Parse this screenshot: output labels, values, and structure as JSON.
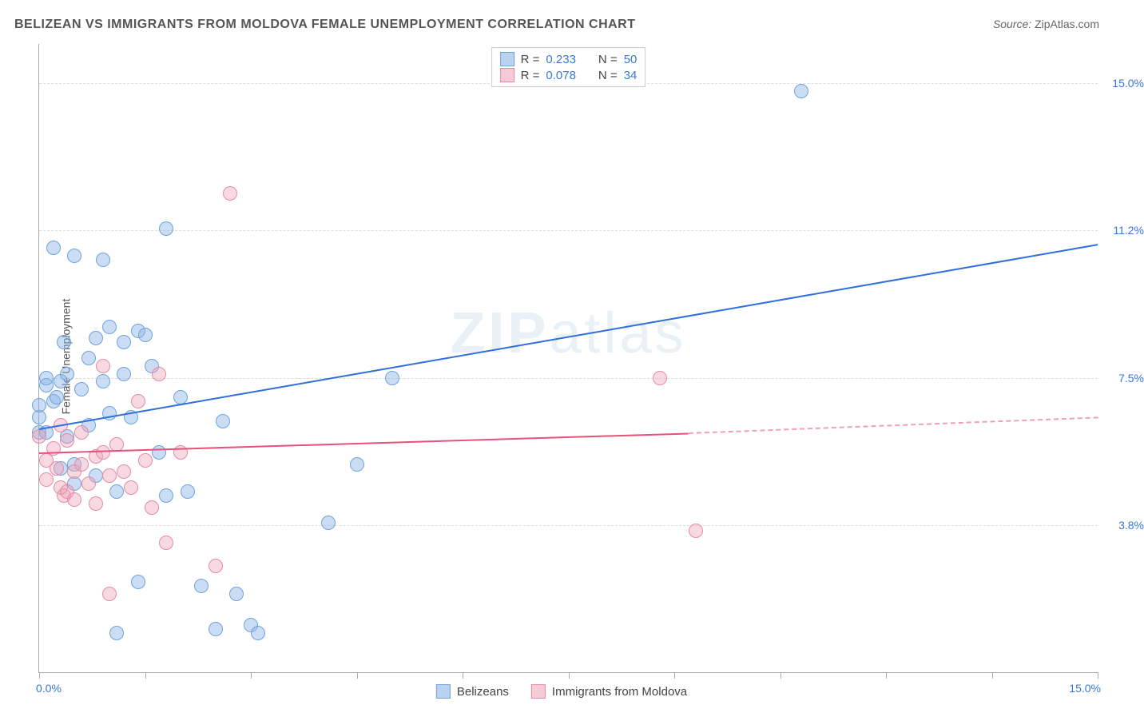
{
  "title": "BELIZEAN VS IMMIGRANTS FROM MOLDOVA FEMALE UNEMPLOYMENT CORRELATION CHART",
  "source_label": "Source: ",
  "source_value": "ZipAtlas.com",
  "y_axis_label": "Female Unemployment",
  "watermark_bold": "ZIP",
  "watermark_rest": "atlas",
  "chart": {
    "type": "scatter",
    "xlim": [
      0,
      15
    ],
    "ylim": [
      0,
      16
    ],
    "x_ticks": [
      0,
      1.5,
      3.0,
      4.5,
      6.0,
      7.5,
      9.0,
      10.5,
      12.0,
      13.5,
      15.0
    ],
    "x_left_label": "0.0%",
    "x_right_label": "15.0%",
    "y_grid": [
      {
        "value": 3.75,
        "label": "3.8%"
      },
      {
        "value": 7.5,
        "label": "7.5%"
      },
      {
        "value": 11.25,
        "label": "11.2%"
      },
      {
        "value": 15.0,
        "label": "15.0%"
      }
    ],
    "background_color": "#ffffff",
    "grid_color": "#dddddd",
    "axis_color": "#aaaaaa",
    "marker_radius": 9,
    "series": [
      {
        "name": "Belizeans",
        "color_fill": "rgba(140,180,230,0.45)",
        "color_stroke": "#6fa3db",
        "r_value": "0.233",
        "n_value": "50",
        "trend": {
          "color": "#2e6fd9",
          "x1": 0,
          "y1": 6.2,
          "x2": 15,
          "y2": 10.9,
          "width": 2
        },
        "points": [
          [
            0.0,
            6.1
          ],
          [
            0.0,
            6.5
          ],
          [
            0.0,
            6.8
          ],
          [
            0.1,
            7.3
          ],
          [
            0.1,
            7.5
          ],
          [
            0.2,
            6.9
          ],
          [
            0.2,
            10.8
          ],
          [
            0.25,
            7.0
          ],
          [
            0.3,
            7.4
          ],
          [
            0.3,
            5.2
          ],
          [
            0.35,
            8.4
          ],
          [
            0.4,
            7.6
          ],
          [
            0.4,
            6.0
          ],
          [
            0.5,
            10.6
          ],
          [
            0.5,
            4.8
          ],
          [
            0.5,
            5.3
          ],
          [
            0.6,
            7.2
          ],
          [
            0.7,
            6.3
          ],
          [
            0.7,
            8.0
          ],
          [
            0.8,
            8.5
          ],
          [
            0.8,
            5.0
          ],
          [
            0.9,
            10.5
          ],
          [
            0.9,
            7.4
          ],
          [
            1.0,
            8.8
          ],
          [
            1.0,
            6.6
          ],
          [
            1.1,
            4.6
          ],
          [
            1.1,
            1.0
          ],
          [
            1.2,
            8.4
          ],
          [
            1.2,
            7.6
          ],
          [
            1.3,
            6.5
          ],
          [
            1.4,
            2.3
          ],
          [
            1.4,
            8.7
          ],
          [
            1.5,
            8.6
          ],
          [
            1.6,
            7.8
          ],
          [
            1.7,
            5.6
          ],
          [
            1.8,
            4.5
          ],
          [
            1.8,
            11.3
          ],
          [
            2.0,
            7.0
          ],
          [
            2.1,
            4.6
          ],
          [
            2.3,
            2.2
          ],
          [
            2.5,
            1.1
          ],
          [
            2.6,
            6.4
          ],
          [
            2.8,
            2.0
          ],
          [
            3.0,
            1.2
          ],
          [
            3.1,
            1.0
          ],
          [
            4.1,
            3.8
          ],
          [
            4.5,
            5.3
          ],
          [
            5.0,
            7.5
          ],
          [
            10.8,
            14.8
          ],
          [
            0.1,
            6.1
          ]
        ]
      },
      {
        "name": "Immigrants from Moldova",
        "color_fill": "rgba(240,160,180,0.4)",
        "color_stroke": "#e58ba4",
        "r_value": "0.078",
        "n_value": "34",
        "trend_solid": {
          "color": "#e94f7a",
          "x1": 0,
          "y1": 5.6,
          "x2": 9.2,
          "y2": 6.1,
          "width": 2
        },
        "trend_dash": {
          "color": "#f0a0b4",
          "x1": 9.2,
          "y1": 6.1,
          "x2": 15,
          "y2": 6.5,
          "width": 2
        },
        "points": [
          [
            0.0,
            6.0
          ],
          [
            0.1,
            5.4
          ],
          [
            0.1,
            4.9
          ],
          [
            0.2,
            5.7
          ],
          [
            0.25,
            5.2
          ],
          [
            0.3,
            4.7
          ],
          [
            0.3,
            6.3
          ],
          [
            0.35,
            4.5
          ],
          [
            0.4,
            5.9
          ],
          [
            0.4,
            4.6
          ],
          [
            0.5,
            5.1
          ],
          [
            0.5,
            4.4
          ],
          [
            0.6,
            5.3
          ],
          [
            0.6,
            6.1
          ],
          [
            0.7,
            4.8
          ],
          [
            0.8,
            5.5
          ],
          [
            0.8,
            4.3
          ],
          [
            0.9,
            5.6
          ],
          [
            0.9,
            7.8
          ],
          [
            1.0,
            5.0
          ],
          [
            1.0,
            2.0
          ],
          [
            1.1,
            5.8
          ],
          [
            1.2,
            5.1
          ],
          [
            1.3,
            4.7
          ],
          [
            1.4,
            6.9
          ],
          [
            1.5,
            5.4
          ],
          [
            1.6,
            4.2
          ],
          [
            1.7,
            7.6
          ],
          [
            1.8,
            3.3
          ],
          [
            2.0,
            5.6
          ],
          [
            2.5,
            2.7
          ],
          [
            2.7,
            12.2
          ],
          [
            8.8,
            7.5
          ],
          [
            9.3,
            3.6
          ]
        ]
      }
    ],
    "legend_top": {
      "rows": [
        {
          "swatch": "blue",
          "r_label": "R = ",
          "r_val": "0.233",
          "n_label": "N = ",
          "n_val": "50"
        },
        {
          "swatch": "pink",
          "r_label": "R = ",
          "r_val": "0.078",
          "n_label": "N = ",
          "n_val": "34"
        }
      ]
    },
    "legend_bottom": [
      {
        "swatch": "blue",
        "label": "Belizeans"
      },
      {
        "swatch": "pink",
        "label": "Immigrants from Moldova"
      }
    ]
  }
}
